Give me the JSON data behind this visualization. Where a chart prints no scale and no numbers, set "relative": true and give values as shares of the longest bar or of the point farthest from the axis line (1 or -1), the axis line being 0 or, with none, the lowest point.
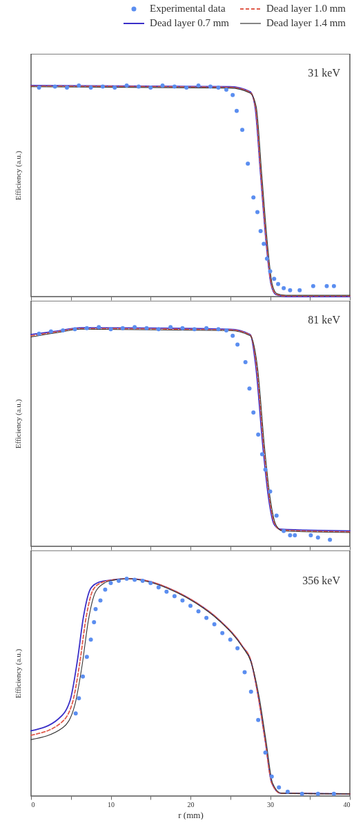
{
  "chart_data": [
    {
      "type": "line",
      "relative": true,
      "legend": "top",
      "tick_labels": false,
      "ylabel": "Efficiency (a.u.)",
      "annotations": [
        "31 keV"
      ],
      "xlim": [
        0,
        40
      ],
      "xticks": [
        0,
        {
          "value": 5,
          "label": null
        },
        10,
        {
          "value": 15,
          "label": null
        },
        20,
        {
          "value": 25,
          "label": null
        },
        30,
        {
          "value": 35,
          "label": null
        },
        40
      ],
      "series": [
        {
          "name": "Experimental data",
          "type": "scatter",
          "marker": "circle",
          "color": "#5b8ef0",
          "x": [
            1,
            3,
            4.5,
            6,
            7.5,
            9,
            10.5,
            12,
            13.5,
            15,
            16.5,
            18,
            19.5,
            21,
            22.5,
            23.5,
            24.5,
            25.3,
            25.8,
            26.5,
            27.2,
            27.9,
            28.4,
            28.8,
            29.2,
            29.6,
            30.0,
            30.5,
            31.0,
            31.7,
            32.5,
            33.7,
            35.4,
            37.1,
            38
          ],
          "values": [
            0.99,
            0.995,
            0.99,
            1.0,
            0.99,
            0.995,
            0.99,
            1.0,
            0.995,
            0.99,
            1.0,
            0.995,
            0.99,
            1.0,
            0.995,
            0.99,
            0.98,
            0.955,
            0.88,
            0.79,
            0.63,
            0.47,
            0.4,
            0.31,
            0.25,
            0.18,
            0.12,
            0.084,
            0.06,
            0.04,
            0.03,
            0.03,
            0.05,
            0.05,
            0.05
          ]
        },
        {
          "name": "Dead layer 1.0 mm",
          "type": "line",
          "line_style": "dashed",
          "color": "#e05a4a",
          "x": [
            0,
            25,
            27.5,
            28.15,
            28.85,
            29.55,
            30.15,
            30.75,
            32,
            40
          ],
          "values": [
            0.997,
            0.991,
            0.967,
            0.9,
            0.577,
            0.255,
            0.06,
            0.012,
            0.003,
            0.003
          ]
        },
        {
          "name": "Dead layer 0.7 mm",
          "type": "line",
          "line_style": "solid",
          "color": "#3a2fc8",
          "x": [
            0,
            25,
            27.5,
            28.1,
            28.8,
            29.5,
            30.1,
            30.7,
            32,
            40
          ],
          "values": [
            1,
            0.994,
            0.97,
            0.9,
            0.577,
            0.255,
            0.06,
            0.01,
            0,
            0
          ]
        },
        {
          "name": "Dead layer 1.4 mm",
          "type": "line",
          "line_style": "solid",
          "color": "#333333",
          "x": [
            0,
            25,
            27.5,
            28.25,
            28.95,
            29.65,
            30.25,
            30.85,
            32,
            40
          ],
          "values": [
            0.994,
            0.988,
            0.964,
            0.9,
            0.577,
            0.255,
            0.06,
            0.014,
            0.006,
            0.006
          ]
        }
      ]
    },
    {
      "type": "line",
      "relative": true,
      "tick_labels": false,
      "ylabel": "Efficiency (a.u.)",
      "annotations": [
        "81 keV"
      ],
      "xlim": [
        0,
        40
      ],
      "xticks": [
        0,
        {
          "value": 5,
          "label": null
        },
        10,
        {
          "value": 15,
          "label": null
        },
        20,
        {
          "value": 25,
          "label": null
        },
        30,
        {
          "value": 35,
          "label": null
        },
        40
      ],
      "series": [
        {
          "type": "scatter",
          "marker": "circle",
          "color": "#5b8ef0",
          "x": [
            1,
            2.5,
            4,
            5.5,
            7,
            8.5,
            10,
            11.5,
            13,
            14.5,
            16,
            17.5,
            19,
            20.5,
            22,
            23.5,
            24.5,
            25.3,
            25.9,
            26.9,
            27.4,
            27.9,
            28.5,
            29.0,
            29.4,
            30.0,
            30.8,
            31.7,
            32.5,
            33.1,
            35.1,
            36,
            37.5
          ],
          "values": [
            0.97,
            0.98,
            0.985,
            0.99,
            0.995,
            1.0,
            0.99,
            0.995,
            1.0,
            0.995,
            0.99,
            1.0,
            0.995,
            0.99,
            0.995,
            0.99,
            0.985,
            0.96,
            0.92,
            0.84,
            0.72,
            0.61,
            0.51,
            0.42,
            0.35,
            0.25,
            0.14,
            0.07,
            0.05,
            0.05,
            0.05,
            0.04,
            0.03
          ]
        },
        {
          "type": "line",
          "line_style": "dashed",
          "color": "#e05a4a",
          "x": [
            0,
            3,
            6.3,
            25,
            27.5,
            28.3,
            29.2,
            29.9,
            30.6,
            31.4,
            40
          ],
          "values": [
            0.96,
            0.977,
            0.993,
            0.987,
            0.963,
            0.82,
            0.45,
            0.22,
            0.1,
            0.074,
            0.066
          ]
        },
        {
          "type": "line",
          "line_style": "solid",
          "color": "#3a2fc8",
          "x": [
            0,
            3,
            6.3,
            25,
            27.5,
            28.2,
            29.1,
            29.8,
            30.5,
            31.3,
            40
          ],
          "values": [
            0.966,
            0.98,
            0.997,
            0.99,
            0.966,
            0.82,
            0.45,
            0.22,
            0.1,
            0.078,
            0.07
          ]
        },
        {
          "type": "line",
          "line_style": "solid",
          "color": "#333333",
          "x": [
            0,
            3,
            6.3,
            25,
            27.5,
            28.4,
            29.3,
            30.0,
            30.7,
            31.5,
            40
          ],
          "values": [
            0.955,
            0.973,
            0.99,
            0.984,
            0.96,
            0.82,
            0.45,
            0.22,
            0.1,
            0.071,
            0.063
          ]
        }
      ]
    },
    {
      "type": "line",
      "relative": true,
      "tick_labels": "x",
      "ylabel": "Efficiency (a.u.)",
      "xlabel": "r (mm)",
      "annotations": [
        "356 keV"
      ],
      "xlim": [
        0,
        40
      ],
      "xticks": [
        0,
        {
          "value": 5,
          "label": null
        },
        10,
        {
          "value": 15,
          "label": null
        },
        20,
        {
          "value": 25,
          "label": null
        },
        30,
        {
          "value": 35,
          "label": null
        },
        40
      ],
      "series": [
        {
          "type": "scatter",
          "marker": "circle",
          "color": "#5b8ef0",
          "x": [
            5.6,
            6.0,
            6.5,
            7.0,
            7.5,
            7.9,
            8.1,
            8.7,
            9.3,
            10,
            11,
            12,
            13,
            14,
            15,
            16,
            17,
            18,
            19,
            20,
            21,
            22,
            23,
            24,
            25,
            25.9,
            26.8,
            27.6,
            28.5,
            29.4,
            30.2,
            31.1,
            32.2,
            34,
            36,
            38
          ],
          "values": [
            0.38,
            0.45,
            0.55,
            0.64,
            0.72,
            0.8,
            0.86,
            0.9,
            0.95,
            0.98,
            0.99,
            1.0,
            0.995,
            0.99,
            0.98,
            0.96,
            0.94,
            0.92,
            0.9,
            0.875,
            0.85,
            0.82,
            0.79,
            0.75,
            0.72,
            0.68,
            0.57,
            0.48,
            0.35,
            0.2,
            0.09,
            0.04,
            0.02,
            0.01,
            0.01,
            0.01
          ]
        },
        {
          "type": "line",
          "line_style": "dashed",
          "color": "#e05a4a",
          "x": [
            0,
            3.7,
            5.2,
            6.1,
            6.9,
            7.8,
            8.9,
            10.2,
            12.1,
            14.9,
            17.9,
            20.7,
            23.6,
            26.5,
            27.6,
            28.5,
            29.4,
            30.2,
            31.3,
            40
          ],
          "values": [
            0.28,
            0.335,
            0.43,
            0.61,
            0.82,
            0.95,
            0.983,
            0.994,
            1.0,
            0.987,
            0.946,
            0.89,
            0.81,
            0.69,
            0.62,
            0.46,
            0.25,
            0.06,
            0.013,
            0.01
          ]
        },
        {
          "type": "line",
          "line_style": "solid",
          "color": "#3a2fc8",
          "x": [
            0,
            3.4,
            4.9,
            5.8,
            6.6,
            7.5,
            8.6,
            10.1,
            12.1,
            14.9,
            17.9,
            20.7,
            23.6,
            26.5,
            27.6,
            28.5,
            29.4,
            30.2,
            31.3,
            40
          ],
          "values": [
            0.3,
            0.354,
            0.44,
            0.62,
            0.83,
            0.956,
            0.985,
            0.994,
            1.0,
            0.987,
            0.946,
            0.89,
            0.81,
            0.69,
            0.62,
            0.46,
            0.25,
            0.06,
            0.013,
            0.01
          ]
        },
        {
          "type": "line",
          "line_style": "solid",
          "color": "#333333",
          "x": [
            0,
            4.0,
            5.5,
            6.4,
            7.2,
            8.1,
            9.2,
            10.3,
            12.1,
            14.9,
            17.9,
            20.7,
            23.6,
            26.5,
            27.6,
            28.6,
            29.5,
            30.3,
            31.4,
            40
          ],
          "values": [
            0.26,
            0.315,
            0.42,
            0.6,
            0.81,
            0.94,
            0.98,
            0.993,
            1.0,
            0.984,
            0.943,
            0.887,
            0.807,
            0.687,
            0.617,
            0.46,
            0.25,
            0.06,
            0.013,
            0.01
          ]
        }
      ]
    }
  ]
}
